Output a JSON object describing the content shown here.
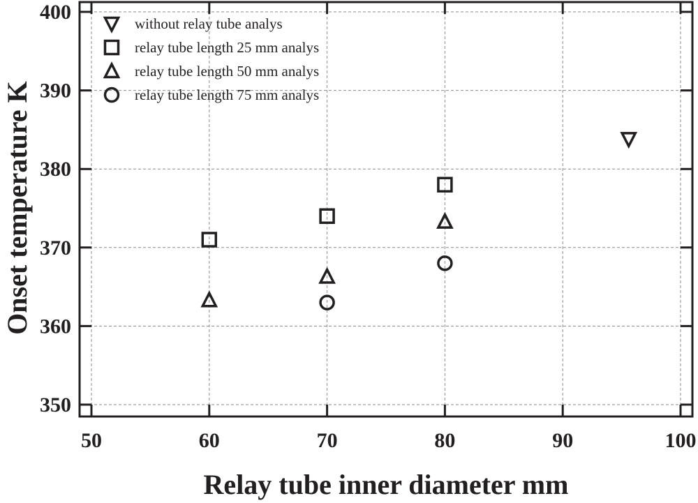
{
  "chart_data": {
    "type": "scatter",
    "title": "",
    "xlabel": "Relay tube inner diameter  mm",
    "ylabel": "Onset temperature  K",
    "xlim": [
      49,
      101
    ],
    "ylim": [
      348.5,
      401.3
    ],
    "xticks": [
      50,
      60,
      70,
      80,
      90,
      100
    ],
    "yticks": [
      350,
      360,
      370,
      380,
      390,
      400
    ],
    "grid": true,
    "legend_position": "upper left",
    "series": [
      {
        "name": "without relay tube analys",
        "marker": "triangle-down",
        "points": [
          {
            "x": 95.6,
            "y": 383.8
          }
        ]
      },
      {
        "name": "relay tube length 25 mm analys",
        "marker": "square",
        "points": [
          {
            "x": 60,
            "y": 371.0
          },
          {
            "x": 70,
            "y": 374.0
          },
          {
            "x": 80,
            "y": 378.0
          }
        ]
      },
      {
        "name": "relay tube length 50 mm analys",
        "marker": "triangle-up",
        "points": [
          {
            "x": 60,
            "y": 363.3
          },
          {
            "x": 70,
            "y": 366.3
          },
          {
            "x": 80,
            "y": 373.3
          }
        ]
      },
      {
        "name": "relay tube length 75 mm analys",
        "marker": "circle",
        "points": [
          {
            "x": 70,
            "y": 363.0
          },
          {
            "x": 80,
            "y": 368.0
          }
        ]
      }
    ]
  },
  "colors": {
    "ink": "#231f20",
    "grid": "#8a8a8a",
    "background": "#ffffff"
  }
}
